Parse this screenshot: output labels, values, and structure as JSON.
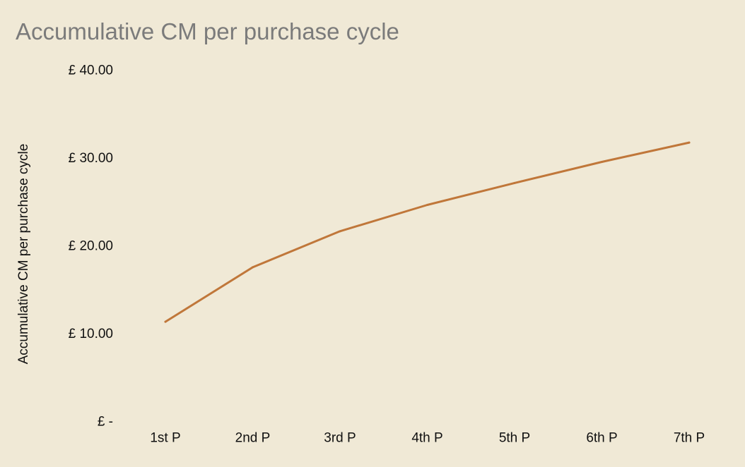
{
  "chart_data": {
    "type": "line",
    "title": "Accumulative CM per purchase cycle",
    "xlabel": "",
    "ylabel": "Accumulative CM per purchase cycle",
    "categories": [
      "1st P",
      "2nd P",
      "3rd P",
      "4th P",
      "5th P",
      "6th P",
      "7th P"
    ],
    "series": [
      {
        "values": [
          11.4,
          17.6,
          21.7,
          24.7,
          27.2,
          29.6,
          31.8
        ],
        "color": "#c0773a"
      }
    ],
    "yticks": [
      {
        "value": 0,
        "label": "£ -"
      },
      {
        "value": 10,
        "label": "£ 10.00"
      },
      {
        "value": 20,
        "label": "£ 20.00"
      },
      {
        "value": 30,
        "label": "£ 30.00"
      },
      {
        "value": 40,
        "label": "£ 40.00"
      }
    ],
    "ylim": [
      0,
      40
    ],
    "grid": false,
    "legend": "none"
  },
  "colors": {
    "background": "#f0e9d6",
    "title": "#7b7b7b",
    "text": "#111111",
    "line": "#c0773a"
  }
}
